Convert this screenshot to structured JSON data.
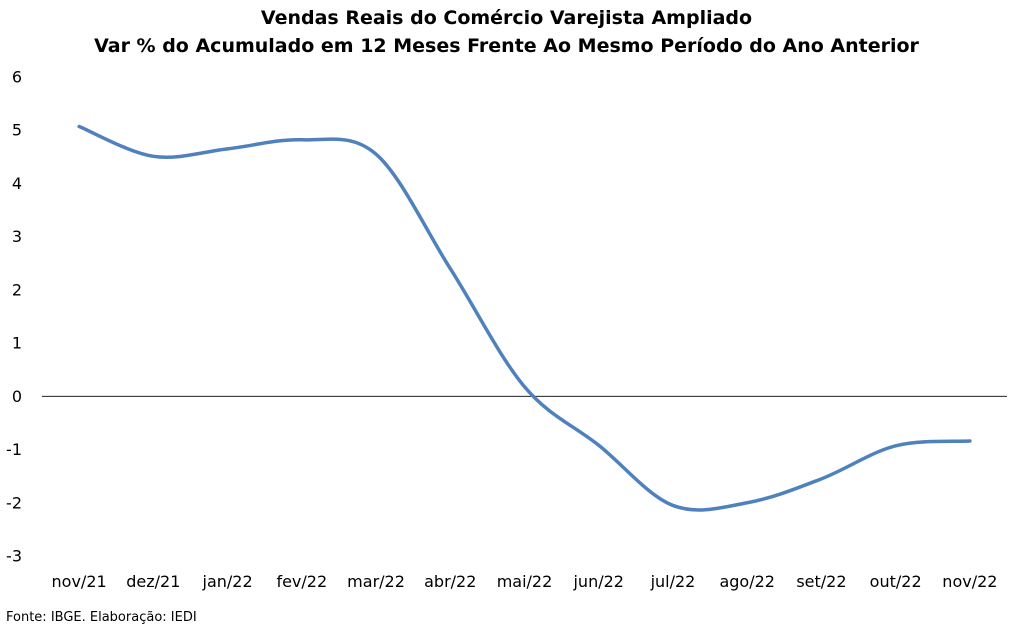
{
  "chart_data": {
    "type": "line",
    "title": "Vendas Reais do Comércio Varejista Ampliado",
    "subtitle": "Var % do Acumulado em 12 Meses Frente Ao Mesmo Período do Ano Anterior",
    "xlabel": "",
    "ylabel": "",
    "categories": [
      "nov/21",
      "dez/21",
      "jan/22",
      "fev/22",
      "mar/22",
      "abr/22",
      "mai/22",
      "jun/22",
      "jul/22",
      "ago/22",
      "set/22",
      "out/22",
      "nov/22"
    ],
    "series": [
      {
        "values": [
          5.07,
          4.51,
          4.65,
          4.82,
          4.55,
          2.4,
          0.18,
          -0.92,
          -2.05,
          -2.0,
          -1.55,
          -0.93,
          -0.84
        ]
      }
    ],
    "ylim": [
      -3,
      6
    ],
    "yticks": [
      6,
      5,
      4,
      3,
      2,
      1,
      0,
      -1,
      -2,
      -3
    ],
    "grid": false,
    "legend": "none",
    "line_color": "#4F81BD",
    "zero_line_color": "#000000"
  },
  "source": "Fonte: IBGE. Elaboração: IEDI"
}
